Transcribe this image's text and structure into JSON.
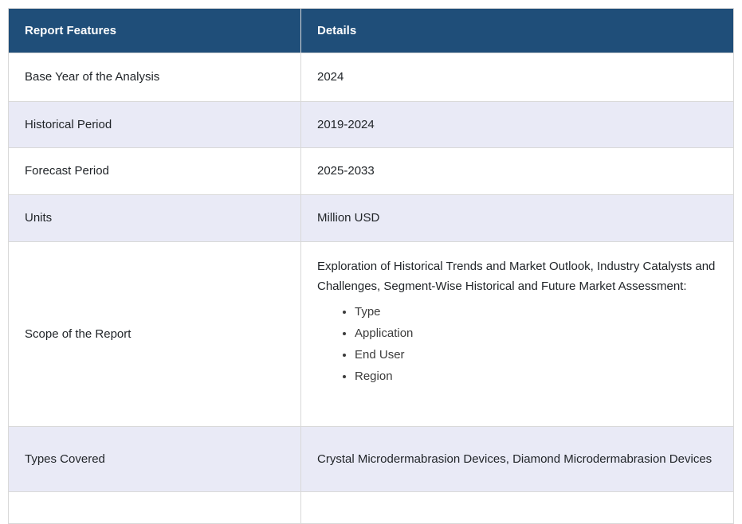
{
  "colors": {
    "header_bg": "#1F4E79",
    "header_text": "#FFFFFF",
    "row_bg": "#FFFFFF",
    "row_alt_bg": "#E9EAF6",
    "border": "#D9D9D9",
    "text": "#212529"
  },
  "table": {
    "columns": {
      "features": "Report Features",
      "details": "Details"
    },
    "rows": [
      {
        "feature": "Base Year of the Analysis",
        "detail": "2024"
      },
      {
        "feature": "Historical Period",
        "detail": "2019-2024"
      },
      {
        "feature": "Forecast Period",
        "detail": "2025-2033"
      },
      {
        "feature": "Units",
        "detail": "Million USD"
      },
      {
        "feature": "Scope of the Report",
        "detail_intro": "Exploration of Historical Trends and Market Outlook, Industry Catalysts and Challenges, Segment-Wise Historical and Future Market Assessment:",
        "detail_bullets": [
          "Type",
          "Application",
          "End User",
          "Region"
        ]
      },
      {
        "feature": "Types Covered",
        "detail": "Crystal Microdermabrasion Devices, Diamond Microdermabrasion Devices"
      }
    ]
  }
}
